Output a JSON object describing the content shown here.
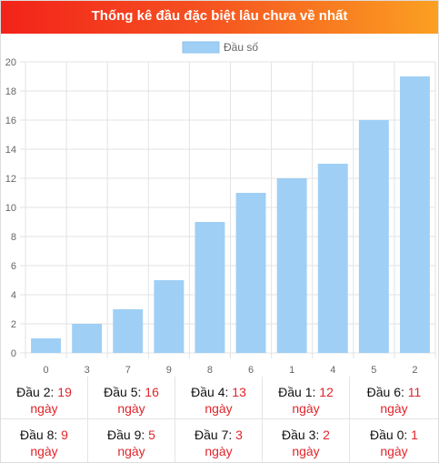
{
  "title": "Thống kê đầu đặc biệt lâu chưa về nhất",
  "colors": {
    "bar": "#9fcff5",
    "accent": "#e0252b",
    "grid": "#e3e3e3"
  },
  "chart_data": {
    "type": "bar",
    "legend": "Đầu số",
    "categories": [
      "0",
      "3",
      "7",
      "9",
      "8",
      "6",
      "1",
      "4",
      "5",
      "2"
    ],
    "values": [
      1,
      2,
      3,
      5,
      9,
      11,
      12,
      13,
      16,
      19
    ],
    "ylim": [
      0,
      20
    ],
    "yticks": [
      "0",
      "2",
      "4",
      "6",
      "8",
      "10",
      "12",
      "14",
      "16",
      "18",
      "20"
    ],
    "grid": true,
    "legend_position": "top-center"
  },
  "stats": [
    {
      "label": "Đầu 2:",
      "value": "19",
      "unit": "ngày"
    },
    {
      "label": "Đầu 5:",
      "value": "16",
      "unit": "ngày"
    },
    {
      "label": "Đầu 4:",
      "value": "13",
      "unit": "ngày"
    },
    {
      "label": "Đầu 1:",
      "value": "12",
      "unit": "ngày"
    },
    {
      "label": "Đầu 6:",
      "value": "11",
      "unit": "ngày"
    },
    {
      "label": "Đầu 8:",
      "value": "9",
      "unit": "ngày"
    },
    {
      "label": "Đầu 9:",
      "value": "5",
      "unit": "ngày"
    },
    {
      "label": "Đầu 7:",
      "value": "3",
      "unit": "ngày"
    },
    {
      "label": "Đầu 3:",
      "value": "2",
      "unit": "ngày"
    },
    {
      "label": "Đầu 0:",
      "value": "1",
      "unit": "ngày"
    }
  ]
}
